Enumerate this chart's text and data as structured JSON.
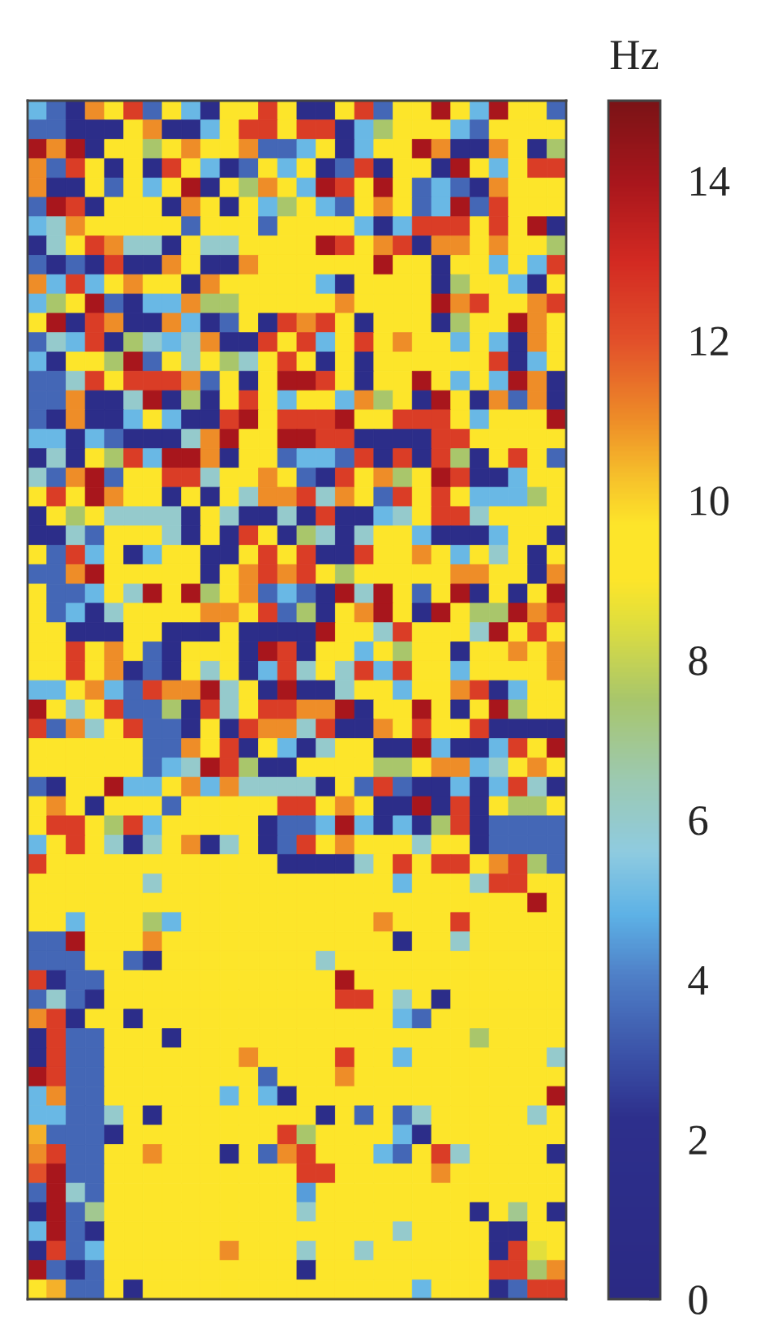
{
  "chart_data": {
    "type": "heatmap",
    "categories": [
      null,
      null,
      null,
      null,
      null,
      null,
      null,
      null,
      null,
      null,
      null,
      null,
      null,
      null,
      null,
      null,
      null,
      null,
      null,
      null,
      null,
      null,
      null,
      null,
      null,
      null,
      null,
      null
    ],
    "y_categories": [
      null,
      null,
      null,
      null,
      null,
      null,
      null,
      null,
      null,
      null,
      null,
      null,
      null,
      null,
      null,
      null,
      null,
      null,
      null,
      null,
      null,
      null,
      null,
      null,
      null,
      null,
      null,
      null,
      null,
      null,
      null,
      null,
      null,
      null,
      null,
      null,
      null,
      null,
      null,
      null,
      null,
      null,
      null,
      null,
      null,
      null,
      null,
      null,
      null,
      null,
      null,
      null,
      null,
      null,
      null,
      null,
      null,
      null,
      null,
      null,
      null,
      null
    ],
    "clabel": "Hz",
    "clim": [
      0,
      15
    ],
    "cticks": [
      0,
      2,
      4,
      6,
      8,
      10,
      12,
      14
    ],
    "cells": [
      [
        5,
        3.5,
        1.5,
        11,
        9.5,
        12.5,
        3.5,
        9.5,
        5,
        1.5,
        9.5,
        9.5,
        12.5,
        9.5,
        1.5,
        1.5,
        9.5,
        12.5,
        3.5,
        9.5,
        9.5,
        14,
        9.5,
        5,
        14,
        9.5,
        9.5,
        3.5
      ],
      [
        3.5,
        3.5,
        1.5,
        1.5,
        1.5,
        9.5,
        11,
        1.5,
        1.5,
        5,
        9.5,
        12.5,
        12.5,
        9.5,
        12.5,
        12.5,
        1.5,
        5,
        7.5,
        9.5,
        9.5,
        9.5,
        5,
        3.5,
        9.5,
        9.5,
        9.5,
        9.5
      ],
      [
        14,
        11,
        14,
        1.5,
        9.5,
        9.5,
        7.5,
        9.5,
        11,
        9.5,
        9.5,
        11,
        3.5,
        3.5,
        5,
        9.5,
        1.5,
        5,
        9.5,
        9.5,
        14,
        11,
        1.5,
        1.5,
        11,
        9.5,
        1.5,
        7.5
      ],
      [
        11,
        3.5,
        12.5,
        9.5,
        1.5,
        9.5,
        1.5,
        12.5,
        9.5,
        5,
        1.5,
        3.5,
        9.5,
        5,
        9.5,
        1.5,
        3.5,
        12.5,
        1.5,
        9.5,
        9.5,
        1.5,
        14,
        9.5,
        5,
        9.5,
        12.5,
        12.5
      ],
      [
        11,
        1.5,
        1.5,
        9.5,
        3.5,
        9.5,
        5,
        9.5,
        14,
        1.5,
        9.5,
        7.5,
        11,
        9.5,
        5,
        14,
        12.5,
        9.5,
        14,
        9.5,
        3.5,
        5,
        3.5,
        1.5,
        11,
        9.5,
        9.5,
        9.5
      ],
      [
        3.5,
        14,
        12.5,
        1.5,
        9.5,
        9.5,
        9.5,
        1.5,
        11,
        9.5,
        1.5,
        9.5,
        5,
        7.5,
        9.5,
        5,
        3.5,
        9.5,
        11,
        9.5,
        3.5,
        5,
        14,
        3.5,
        12.5,
        9.5,
        9.5,
        9.5
      ],
      [
        5,
        6,
        11,
        9.5,
        9.5,
        9.5,
        9.5,
        9.5,
        3.5,
        9.5,
        9.5,
        9.5,
        3.5,
        9.5,
        9.5,
        9.5,
        9.5,
        5,
        1.5,
        5,
        12.5,
        12.5,
        12.5,
        9.5,
        12.5,
        9.5,
        14,
        1.5
      ],
      [
        1.5,
        6,
        9.5,
        12.5,
        11,
        6,
        6,
        1.5,
        9.5,
        6,
        6,
        9.5,
        9.5,
        9.5,
        9.5,
        14,
        12.5,
        9.5,
        11,
        12.5,
        1.5,
        11,
        11,
        9.5,
        11,
        9.5,
        9.5,
        7.5
      ],
      [
        3.5,
        1.5,
        3.5,
        1.5,
        12.5,
        1.5,
        1.5,
        11,
        9.5,
        1.5,
        1.5,
        11,
        9.5,
        9.5,
        9.5,
        9.5,
        9.5,
        9.5,
        14,
        9.5,
        9.5,
        1.5,
        9.5,
        9.5,
        5,
        9.5,
        5,
        12.5
      ],
      [
        11,
        5,
        12.5,
        5,
        9.5,
        11,
        9.5,
        9.5,
        1.5,
        11,
        9.5,
        9.5,
        9.5,
        9.5,
        9.5,
        5,
        1.5,
        9.5,
        9.5,
        9.5,
        9.5,
        1.5,
        7.5,
        9.5,
        9.5,
        5,
        1.5,
        9.5
      ],
      [
        5,
        7.5,
        9.5,
        14,
        3.5,
        1.5,
        5,
        5,
        11,
        7.5,
        7.5,
        9.5,
        9.5,
        9.5,
        9.5,
        9.5,
        11,
        9.5,
        9.5,
        9.5,
        9.5,
        14,
        11,
        12.5,
        9.5,
        9.5,
        11,
        12.5
      ],
      [
        9.5,
        14,
        1.5,
        12.5,
        11,
        1.5,
        1.5,
        11,
        5,
        1.5,
        3.5,
        9.5,
        1.5,
        12.5,
        11,
        12.5,
        9.5,
        1.5,
        9.5,
        9.5,
        9.5,
        1.5,
        7.5,
        9.5,
        9.5,
        14,
        11,
        9.5
      ],
      [
        3.5,
        6,
        5,
        12.5,
        1.5,
        7.5,
        6,
        5,
        6,
        11,
        1.5,
        1.5,
        12.5,
        9.5,
        12.5,
        5,
        9.5,
        12.5,
        9.5,
        11,
        9.5,
        9.5,
        5,
        9.5,
        5,
        1.5,
        11,
        9.5
      ],
      [
        5,
        1.5,
        9.5,
        9.5,
        7.5,
        14,
        3.5,
        9.5,
        6,
        9.5,
        7.5,
        6,
        9.5,
        12.5,
        9.5,
        1.5,
        9.5,
        1.5,
        9.5,
        9.5,
        9.5,
        9.5,
        9.5,
        9.5,
        12.5,
        1.5,
        5,
        9.5
      ],
      [
        3.5,
        3.5,
        6,
        12.5,
        9.5,
        12.5,
        12.5,
        12.5,
        11,
        3.5,
        9.5,
        1.5,
        9.5,
        14,
        14,
        12.5,
        9.5,
        1.5,
        9.5,
        9.5,
        14,
        9.5,
        5,
        9.5,
        5,
        14,
        11,
        1.5
      ],
      [
        3.5,
        3.5,
        11,
        1.5,
        1.5,
        6,
        14,
        1.5,
        7.5,
        1.5,
        9.5,
        12.5,
        9.5,
        5,
        9.5,
        9.5,
        5,
        11,
        7.5,
        9.5,
        1.5,
        14,
        9.5,
        1.5,
        11,
        3.5,
        11,
        1.5
      ],
      [
        3.5,
        1.5,
        11,
        1.5,
        1.5,
        5,
        9.5,
        5,
        1.5,
        1.5,
        12.5,
        14,
        9.5,
        12.5,
        12.5,
        12.5,
        14,
        9.5,
        9.5,
        12.5,
        12.5,
        12.5,
        9.5,
        5,
        9.5,
        9.5,
        9.5,
        14
      ],
      [
        5,
        5,
        1.5,
        5,
        3.5,
        1.5,
        1.5,
        1.5,
        6,
        11,
        14,
        9.5,
        9.5,
        14,
        14,
        12.5,
        12.5,
        1.5,
        1.5,
        1.5,
        1.5,
        12.5,
        12.5,
        9.5,
        9.5,
        9.5,
        9.5,
        9.5
      ],
      [
        1.5,
        6,
        1.5,
        9.5,
        7.5,
        12.5,
        5,
        14,
        14,
        11,
        1.5,
        9.5,
        9.5,
        3.5,
        5,
        5,
        3.5,
        12.5,
        1.5,
        12.5,
        1.5,
        12.5,
        7.5,
        1.5,
        9.5,
        12.5,
        9.5,
        3.5
      ],
      [
        6,
        3.5,
        11,
        14,
        3.5,
        9.5,
        9.5,
        12.5,
        12.5,
        6,
        9.5,
        9.5,
        11,
        9.5,
        3.5,
        1.5,
        12.5,
        9.5,
        11,
        7.5,
        9.5,
        14,
        12.5,
        1.5,
        1.5,
        5,
        9.5,
        9.5
      ],
      [
        9.5,
        12.5,
        9.5,
        14,
        11,
        9.5,
        9.5,
        1.5,
        9.5,
        1.5,
        9.5,
        6,
        11,
        11,
        12.5,
        6,
        11,
        9.5,
        3.5,
        12.5,
        9.5,
        12.5,
        9.5,
        5,
        5,
        5,
        7.5,
        9.5
      ],
      [
        1.5,
        9.5,
        7.5,
        9.5,
        6,
        6,
        6,
        6,
        1.5,
        9.5,
        6,
        1.5,
        1.5,
        6,
        1.5,
        12.5,
        1.5,
        1.5,
        5,
        6,
        9.5,
        12.5,
        12.5,
        6,
        9.5,
        9.5,
        9.5,
        9.5
      ],
      [
        1.5,
        1.5,
        6,
        3.5,
        9.5,
        9.5,
        9.5,
        6,
        1.5,
        9.5,
        1.5,
        12.5,
        9.5,
        1.5,
        7.5,
        6,
        1.5,
        6,
        9.5,
        9.5,
        5,
        1.5,
        1.5,
        1.5,
        5,
        9.5,
        9.5,
        1.5
      ],
      [
        9.5,
        3.5,
        12.5,
        5,
        9.5,
        1.5,
        5,
        9.5,
        9.5,
        1.5,
        1.5,
        9.5,
        12.5,
        9.5,
        12.5,
        1.5,
        1.5,
        12.5,
        9.5,
        9.5,
        11,
        9.5,
        5,
        9.5,
        6,
        9.5,
        1.5,
        9.5
      ],
      [
        3.5,
        3.5,
        11,
        14,
        9.5,
        9.5,
        9.5,
        9.5,
        9.5,
        1.5,
        9.5,
        11,
        12.5,
        11,
        12.5,
        9.5,
        7.5,
        9.5,
        9.5,
        9.5,
        9.5,
        9.5,
        11,
        11,
        9.5,
        9.5,
        1.5,
        11
      ],
      [
        9.5,
        3.5,
        3.5,
        5,
        9.5,
        6,
        14,
        9.5,
        14,
        7.5,
        9.5,
        11,
        3.5,
        5,
        3.5,
        1.5,
        14,
        6,
        14,
        9.5,
        3.5,
        9.5,
        14,
        1.5,
        9.5,
        1.5,
        9.5,
        14
      ],
      [
        9.5,
        3.5,
        5,
        1.5,
        6,
        9.5,
        9.5,
        9.5,
        9.5,
        11,
        11,
        9.5,
        12.5,
        3.5,
        7.5,
        1.5,
        9.5,
        11,
        14,
        9.5,
        1.5,
        14,
        9.5,
        7.5,
        7.5,
        14,
        11,
        12.5
      ],
      [
        9.5,
        9.5,
        1.5,
        1.5,
        1.5,
        9.5,
        9.5,
        1.5,
        1.5,
        1.5,
        9.5,
        1.5,
        1.5,
        1.5,
        1.5,
        14,
        9.5,
        9.5,
        6,
        12.5,
        9.5,
        9.5,
        9.5,
        6,
        14,
        9.5,
        12.5,
        9.5
      ],
      [
        9.5,
        9.5,
        12.5,
        9.5,
        11,
        9.5,
        3.5,
        1.5,
        9.5,
        9.5,
        9.5,
        1.5,
        14,
        12.5,
        1.5,
        9.5,
        9.5,
        5,
        9.5,
        7.5,
        9.5,
        9.5,
        1.5,
        9.5,
        9.5,
        11,
        9.5,
        11
      ],
      [
        9.5,
        9.5,
        12.5,
        9.5,
        11,
        1.5,
        3.5,
        1.5,
        9.5,
        6,
        9.5,
        1.5,
        5,
        12.5,
        6,
        9.5,
        6,
        12.5,
        5,
        12.5,
        9.5,
        9.5,
        5,
        9.5,
        9.5,
        9.5,
        9.5,
        11
      ],
      [
        5,
        5,
        9.5,
        11,
        5,
        3.5,
        12.5,
        11,
        11,
        14,
        6,
        9.5,
        1.5,
        14,
        1.5,
        1.5,
        6,
        9.5,
        9.5,
        5,
        9.5,
        9.5,
        11,
        12.5,
        1.5,
        5,
        9.5,
        9.5
      ],
      [
        14,
        9.5,
        6,
        9.5,
        12.5,
        3.5,
        3.5,
        7.5,
        1.5,
        12.5,
        6,
        9.5,
        12.5,
        12.5,
        11,
        11,
        14,
        1.5,
        9.5,
        9.5,
        14,
        9.5,
        1.5,
        9.5,
        14,
        7.5,
        9.5,
        9.5
      ],
      [
        12.5,
        3.5,
        11,
        6,
        9.5,
        12.5,
        3.5,
        3.5,
        1.5,
        9.5,
        1.5,
        12.5,
        11,
        11,
        6,
        12.5,
        1.5,
        1.5,
        11,
        9.5,
        12.5,
        9.5,
        9.5,
        12.5,
        1.5,
        1.5,
        1.5,
        1.5
      ],
      [
        9.5,
        9.5,
        9.5,
        9.5,
        9.5,
        9.5,
        3.5,
        3.5,
        11,
        9.5,
        12.5,
        1.5,
        9.5,
        5,
        1.5,
        6,
        9.5,
        9.5,
        1.5,
        1.5,
        14,
        5,
        1.5,
        1.5,
        5,
        12.5,
        9.5,
        14
      ],
      [
        9.5,
        9.5,
        9.5,
        9.5,
        9.5,
        9.5,
        3.5,
        5,
        6,
        14,
        12.5,
        7.5,
        1.5,
        1.5,
        9.5,
        9.5,
        9.5,
        9.5,
        7.5,
        7.5,
        9.5,
        11,
        11,
        5,
        6,
        9.5,
        11,
        9.5
      ],
      [
        3.5,
        1.5,
        9.5,
        9.5,
        14,
        5,
        5,
        9.5,
        11,
        5,
        11,
        6,
        6,
        6,
        6,
        1.5,
        9.5,
        3.5,
        12.5,
        3.5,
        1.5,
        1.5,
        5,
        1.5,
        5,
        12.5,
        6,
        1.5
      ],
      [
        9.5,
        11,
        9.5,
        1.5,
        9.5,
        9.5,
        9.5,
        3.5,
        9.5,
        9.5,
        9.5,
        9.5,
        9.5,
        12.5,
        12.5,
        9.5,
        11,
        9.5,
        1.5,
        1.5,
        14,
        1.5,
        12.5,
        1.5,
        9.5,
        7.5,
        7.5,
        9.5
      ],
      [
        9.5,
        12.5,
        12.5,
        9.5,
        7.5,
        12.5,
        5,
        9.5,
        9.5,
        9.5,
        9.5,
        9.5,
        1.5,
        3.5,
        3.5,
        5,
        14,
        5,
        1.5,
        5,
        1.5,
        7.5,
        12.5,
        1.5,
        3.5,
        3.5,
        3.5,
        3.5
      ],
      [
        5,
        9.5,
        12.5,
        9.5,
        6,
        1.5,
        6,
        9.5,
        11,
        1.5,
        6,
        9.5,
        1.5,
        3.5,
        12.5,
        9.5,
        11,
        9.5,
        9.5,
        9.5,
        6,
        9.5,
        9.5,
        1.5,
        3.5,
        3.5,
        3.5,
        3.5
      ],
      [
        12.5,
        9.5,
        9.5,
        9.5,
        9.5,
        9.5,
        9.5,
        9.5,
        9.5,
        9.5,
        9.5,
        9.5,
        9.5,
        1.5,
        1.5,
        1.5,
        1.5,
        6,
        9.5,
        12.5,
        9.5,
        12.5,
        12.5,
        9.5,
        11,
        12.5,
        7.5,
        3.5
      ],
      [
        9.5,
        9.5,
        9.5,
        9.5,
        9.5,
        9.5,
        6,
        9.5,
        9.5,
        9.5,
        9.5,
        9.5,
        9.5,
        9.5,
        9.5,
        9.5,
        9.5,
        9.5,
        9.5,
        5,
        9.5,
        9.5,
        9.5,
        6,
        12.5,
        12.5,
        9.5,
        9.5
      ],
      [
        9.5,
        9.5,
        9.5,
        9.5,
        9.5,
        9.5,
        9.5,
        9.5,
        9.5,
        9.5,
        9.5,
        9.5,
        9.5,
        9.5,
        9.5,
        9.5,
        9.5,
        9.5,
        9.5,
        9.5,
        9.5,
        9.5,
        9.5,
        9.5,
        9.5,
        9.5,
        14,
        9.5
      ],
      [
        9.5,
        9.5,
        5,
        9.5,
        9.5,
        9.5,
        7.5,
        5,
        9.5,
        9.5,
        9.5,
        9.5,
        9.5,
        9.5,
        9.5,
        9.5,
        9.5,
        9.5,
        11,
        9.5,
        9.5,
        9.5,
        12.5,
        9.5,
        9.5,
        9.5,
        9.5,
        9.5
      ],
      [
        3.5,
        3.5,
        14,
        9.5,
        9.5,
        9.5,
        11,
        9.5,
        9.5,
        9.5,
        9.5,
        9.5,
        9.5,
        9.5,
        9.5,
        9.5,
        9.5,
        9.5,
        9.5,
        1.5,
        9.5,
        9.5,
        6,
        9.5,
        9.5,
        9.5,
        9.5,
        9.5
      ],
      [
        3.5,
        3.5,
        3.5,
        9.5,
        9.5,
        3.5,
        1.5,
        9.5,
        9.5,
        9.5,
        9.5,
        9.5,
        9.5,
        9.5,
        9.5,
        6,
        9.5,
        9.5,
        9.5,
        9.5,
        9.5,
        9.5,
        9.5,
        9.5,
        9.5,
        9.5,
        9.5,
        9.5
      ],
      [
        12.5,
        1.5,
        3.5,
        3.5,
        9.5,
        9.5,
        9.5,
        9.5,
        9.5,
        9.5,
        9.5,
        9.5,
        9.5,
        9.5,
        9.5,
        9.5,
        14,
        9.5,
        9.5,
        9.5,
        9.5,
        9.5,
        9.5,
        9.5,
        9.5,
        9.5,
        9.5,
        9.5
      ],
      [
        3.5,
        6,
        3.5,
        1.5,
        9.5,
        9.5,
        9.5,
        9.5,
        9.5,
        9.5,
        9.5,
        9.5,
        9.5,
        9.5,
        9.5,
        9.5,
        12.5,
        12.5,
        9.5,
        6,
        9.5,
        1.5,
        9.5,
        9.5,
        9.5,
        9.5,
        9.5,
        9.5
      ],
      [
        11,
        12.5,
        1.5,
        9.5,
        9.5,
        1.5,
        9.5,
        9.5,
        9.5,
        9.5,
        9.5,
        9.5,
        9.5,
        9.5,
        9.5,
        9.5,
        9.5,
        9.5,
        9.5,
        5,
        3.5,
        9.5,
        9.5,
        9.5,
        9.5,
        9.5,
        9.5,
        9.5
      ],
      [
        1.5,
        12.5,
        3.5,
        3.5,
        9.5,
        9.5,
        9.5,
        1.5,
        9.5,
        9.5,
        9.5,
        9.5,
        9.5,
        9.5,
        9.5,
        9.5,
        9.5,
        9.5,
        9.5,
        9.5,
        9.5,
        9.5,
        9.5,
        7.5,
        9.5,
        9.5,
        9.5,
        9.5
      ],
      [
        1.5,
        12.5,
        3.5,
        3.5,
        9.5,
        9.5,
        9.5,
        9.5,
        9.5,
        9.5,
        9.5,
        11,
        9.5,
        9.5,
        9.5,
        9.5,
        12.5,
        9.5,
        9.5,
        5,
        9.5,
        9.5,
        9.5,
        9.5,
        9.5,
        9.5,
        9.5,
        6
      ],
      [
        14,
        12.5,
        3.5,
        3.5,
        9.5,
        9.5,
        9.5,
        9.5,
        9.5,
        9.5,
        9.5,
        9.5,
        3.5,
        9.5,
        9.5,
        9.5,
        11,
        9.5,
        9.5,
        9.5,
        9.5,
        9.5,
        9.5,
        9.5,
        9.5,
        9.5,
        9.5,
        9.5
      ],
      [
        5,
        11,
        3.5,
        3.5,
        9.5,
        9.5,
        9.5,
        9.5,
        9.5,
        9.5,
        5,
        9.5,
        5,
        1.5,
        9.5,
        9.5,
        9.5,
        9.5,
        9.5,
        9.5,
        9.5,
        9.5,
        9.5,
        9.5,
        9.5,
        9.5,
        9.5,
        14
      ],
      [
        5,
        5,
        3.5,
        3.5,
        6,
        9.5,
        1.5,
        9.5,
        9.5,
        9.5,
        9.5,
        9.5,
        9.5,
        9.5,
        9.5,
        1.5,
        9.5,
        3.5,
        9.5,
        3.5,
        6,
        9.5,
        9.5,
        9.5,
        9.5,
        9.5,
        6,
        9.5
      ],
      [
        10.5,
        3.5,
        3.5,
        3.5,
        1.5,
        9.5,
        9.5,
        9.5,
        9.5,
        9.5,
        9.5,
        9.5,
        9.5,
        12.5,
        7.5,
        9.5,
        9.5,
        9.5,
        9.5,
        5,
        1.5,
        9.5,
        9.5,
        9.5,
        9.5,
        9.5,
        9.5,
        9.5
      ],
      [
        11,
        12.5,
        3.5,
        3.5,
        9.5,
        9.5,
        11,
        9.5,
        9.5,
        9.5,
        1.5,
        9.5,
        3.5,
        11,
        12.5,
        9.5,
        9.5,
        9.5,
        5,
        3.5,
        9.5,
        12.5,
        6,
        9.5,
        9.5,
        9.5,
        9.5,
        1.5
      ],
      [
        12,
        14,
        3.5,
        3.5,
        9.5,
        9.5,
        9.5,
        9.5,
        9.5,
        9.5,
        9.5,
        9.5,
        9.5,
        9.5,
        12.5,
        12.5,
        9.5,
        9.5,
        9.5,
        9.5,
        9.5,
        11,
        9.5,
        9.5,
        9.5,
        9.5,
        9.5,
        9.5
      ],
      [
        3.5,
        14,
        6,
        3.5,
        9.5,
        9.5,
        9.5,
        9.5,
        9.5,
        9.5,
        9.5,
        9.5,
        9.5,
        9.5,
        4.5,
        9.5,
        9.5,
        9.5,
        9.5,
        9.5,
        9.5,
        9.5,
        9.5,
        9.5,
        9.5,
        9.5,
        9.5,
        9.5
      ],
      [
        1.5,
        14,
        3.5,
        7,
        9.5,
        9.5,
        9.5,
        9.5,
        9.5,
        9.5,
        9.5,
        9.5,
        9.5,
        9.5,
        6,
        9.5,
        9.5,
        9.5,
        9.5,
        9.5,
        9.5,
        9.5,
        9.5,
        1.5,
        9.5,
        7,
        9.5,
        1.5
      ],
      [
        5,
        14,
        3.5,
        1.5,
        9.5,
        9.5,
        9.5,
        9.5,
        9.5,
        9.5,
        9.5,
        9.5,
        9.5,
        9.5,
        9.5,
        9.5,
        9.5,
        9.5,
        9.5,
        6,
        9.5,
        9.5,
        9.5,
        9.5,
        1.5,
        1.5,
        9.5,
        9.5
      ],
      [
        1.5,
        12.5,
        3.5,
        5,
        9.5,
        9.5,
        9.5,
        9.5,
        9.5,
        9.5,
        11,
        9.5,
        9.5,
        9.5,
        6,
        9.5,
        9.5,
        6,
        9.5,
        9.5,
        9.5,
        9.5,
        9.5,
        9.5,
        1.5,
        12.5,
        8.5,
        9.5
      ],
      [
        14,
        3.5,
        1.5,
        3.5,
        9.5,
        9.5,
        9.5,
        9.5,
        9.5,
        9.5,
        9.5,
        9.5,
        9.5,
        9.5,
        1.5,
        9.5,
        9.5,
        9.5,
        9.5,
        9.5,
        9.5,
        9.5,
        9.5,
        9.5,
        12.5,
        12.5,
        7.5,
        11
      ],
      [
        9.5,
        10.5,
        3.5,
        3.5,
        9.5,
        1.5,
        9.5,
        9.5,
        9.5,
        9.5,
        9.5,
        9.5,
        9.5,
        9.5,
        9.5,
        9.5,
        9.5,
        9.5,
        9.5,
        9.5,
        5,
        9.5,
        9.5,
        9.5,
        1.5,
        3.5,
        12.5,
        12.5
      ]
    ]
  }
}
